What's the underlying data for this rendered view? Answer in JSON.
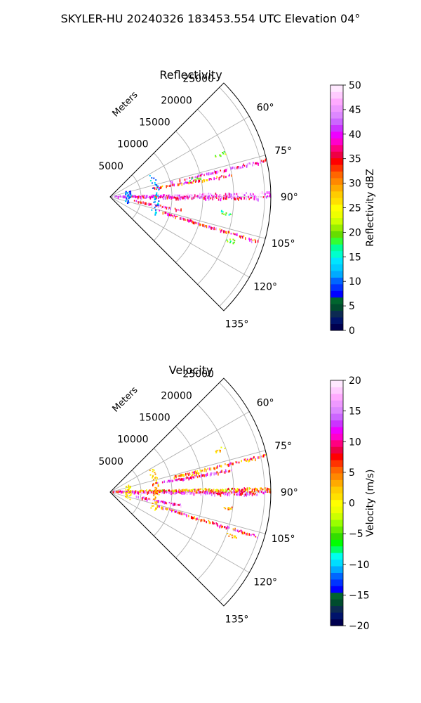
{
  "suptitle": "SKYLER-HU  20240326  183453.554 UTC Elevation 04°",
  "chart_data": [
    {
      "type": "heatmap",
      "subtype": "polar-sector-ppi",
      "title": "Reflectivity",
      "radial_axis_label": "Meters",
      "radial_ticks": [
        5000,
        10000,
        15000,
        20000,
        25000
      ],
      "radial_tick_labels": [
        "5000",
        "10000",
        "15000",
        "20000",
        "25000"
      ],
      "angle_ticks": [
        60,
        75,
        90,
        105,
        120,
        135
      ],
      "angle_tick_labels": [
        "60°",
        "75°",
        "90°",
        "105°",
        "120°",
        "135°"
      ],
      "angle_range": [
        45,
        135
      ],
      "r_max": 26000,
      "grid": true,
      "colorbar": {
        "label": "Reflectivity dBZ",
        "range": [
          0,
          50
        ],
        "ticks": [
          0,
          5,
          10,
          15,
          20,
          25,
          30,
          35,
          40,
          45,
          50
        ],
        "tick_labels": [
          "0",
          "5",
          "10",
          "15",
          "20",
          "25",
          "30",
          "35",
          "40",
          "45",
          "50"
        ]
      },
      "features": [
        {
          "kind": "ray",
          "azimuth": 90,
          "r_range": [
            500,
            26000
          ],
          "value": 43
        },
        {
          "kind": "ray",
          "azimuth": 89,
          "r_range": [
            3000,
            26000
          ],
          "value": 45
        },
        {
          "kind": "ray",
          "azimuth": 91,
          "r_range": [
            3000,
            24000
          ],
          "value": 40
        },
        {
          "kind": "ray",
          "azimuth": 77,
          "r_range": [
            10000,
            26000
          ],
          "value": 42
        },
        {
          "kind": "ray",
          "azimuth": 80,
          "r_range": [
            7000,
            20000
          ],
          "value": 35
        },
        {
          "kind": "ray",
          "azimuth": 107,
          "r_range": [
            8000,
            25000
          ],
          "value": 36
        },
        {
          "kind": "ray",
          "azimuth": 101,
          "r_range": [
            4000,
            12000
          ],
          "value": 40
        },
        {
          "kind": "arc",
          "azimuth_range": [
            60,
            112
          ],
          "radius": 7500,
          "value": 12
        },
        {
          "kind": "arc",
          "azimuth_range": [
            70,
            110
          ],
          "radius": 3000,
          "value": 10
        },
        {
          "kind": "cluster",
          "azimuth": 78,
          "radius": 14000,
          "value": 18
        },
        {
          "kind": "cluster",
          "azimuth": 110,
          "radius": 21000,
          "value": 20
        },
        {
          "kind": "cluster",
          "azimuth": 98,
          "radius": 19000,
          "value": 18
        },
        {
          "kind": "cluster",
          "azimuth": 69,
          "radius": 19000,
          "value": 20
        }
      ]
    },
    {
      "type": "heatmap",
      "subtype": "polar-sector-ppi",
      "title": "Velocity",
      "radial_axis_label": "Meters",
      "radial_ticks": [
        5000,
        10000,
        15000,
        20000,
        25000
      ],
      "radial_tick_labels": [
        "5000",
        "10000",
        "15000",
        "20000",
        "25000"
      ],
      "angle_ticks": [
        60,
        75,
        90,
        105,
        120,
        135
      ],
      "angle_tick_labels": [
        "60°",
        "75°",
        "90°",
        "105°",
        "120°",
        "135°"
      ],
      "angle_range": [
        45,
        135
      ],
      "r_max": 26000,
      "grid": true,
      "colorbar": {
        "label": "Velocity (m/s)",
        "range": [
          -20,
          20
        ],
        "ticks": [
          -20,
          -15,
          -10,
          -5,
          0,
          5,
          10,
          15,
          20
        ],
        "tick_labels": [
          "−20",
          "−15",
          "−10",
          "−5",
          "0",
          "5",
          "10",
          "15",
          "20"
        ]
      },
      "features": [
        {
          "kind": "ray",
          "azimuth": 90,
          "r_range": [
            500,
            26000
          ],
          "value": 10
        },
        {
          "kind": "ray",
          "azimuth": 89,
          "r_range": [
            3000,
            26000
          ],
          "value": 3
        },
        {
          "kind": "ray",
          "azimuth": 91,
          "r_range": [
            3000,
            24000
          ],
          "value": 12
        },
        {
          "kind": "ray",
          "azimuth": 77,
          "r_range": [
            10000,
            26000
          ],
          "value": 6
        },
        {
          "kind": "ray",
          "azimuth": 80,
          "r_range": [
            7000,
            20000
          ],
          "value": 12
        },
        {
          "kind": "ray",
          "azimuth": 107,
          "r_range": [
            8000,
            25000
          ],
          "value": 8
        },
        {
          "kind": "ray",
          "azimuth": 101,
          "r_range": [
            4000,
            12000
          ],
          "value": 14
        },
        {
          "kind": "arc",
          "azimuth_range": [
            60,
            112
          ],
          "radius": 7500,
          "value": 2
        },
        {
          "kind": "arc",
          "azimuth_range": [
            70,
            110
          ],
          "radius": 3000,
          "value": 1
        },
        {
          "kind": "cluster",
          "azimuth": 78,
          "radius": 14000,
          "value": 2
        },
        {
          "kind": "cluster",
          "azimuth": 110,
          "radius": 21000,
          "value": 3
        },
        {
          "kind": "cluster",
          "azimuth": 98,
          "radius": 19000,
          "value": 4
        },
        {
          "kind": "cluster",
          "azimuth": 69,
          "radius": 19000,
          "value": 2
        }
      ]
    }
  ]
}
